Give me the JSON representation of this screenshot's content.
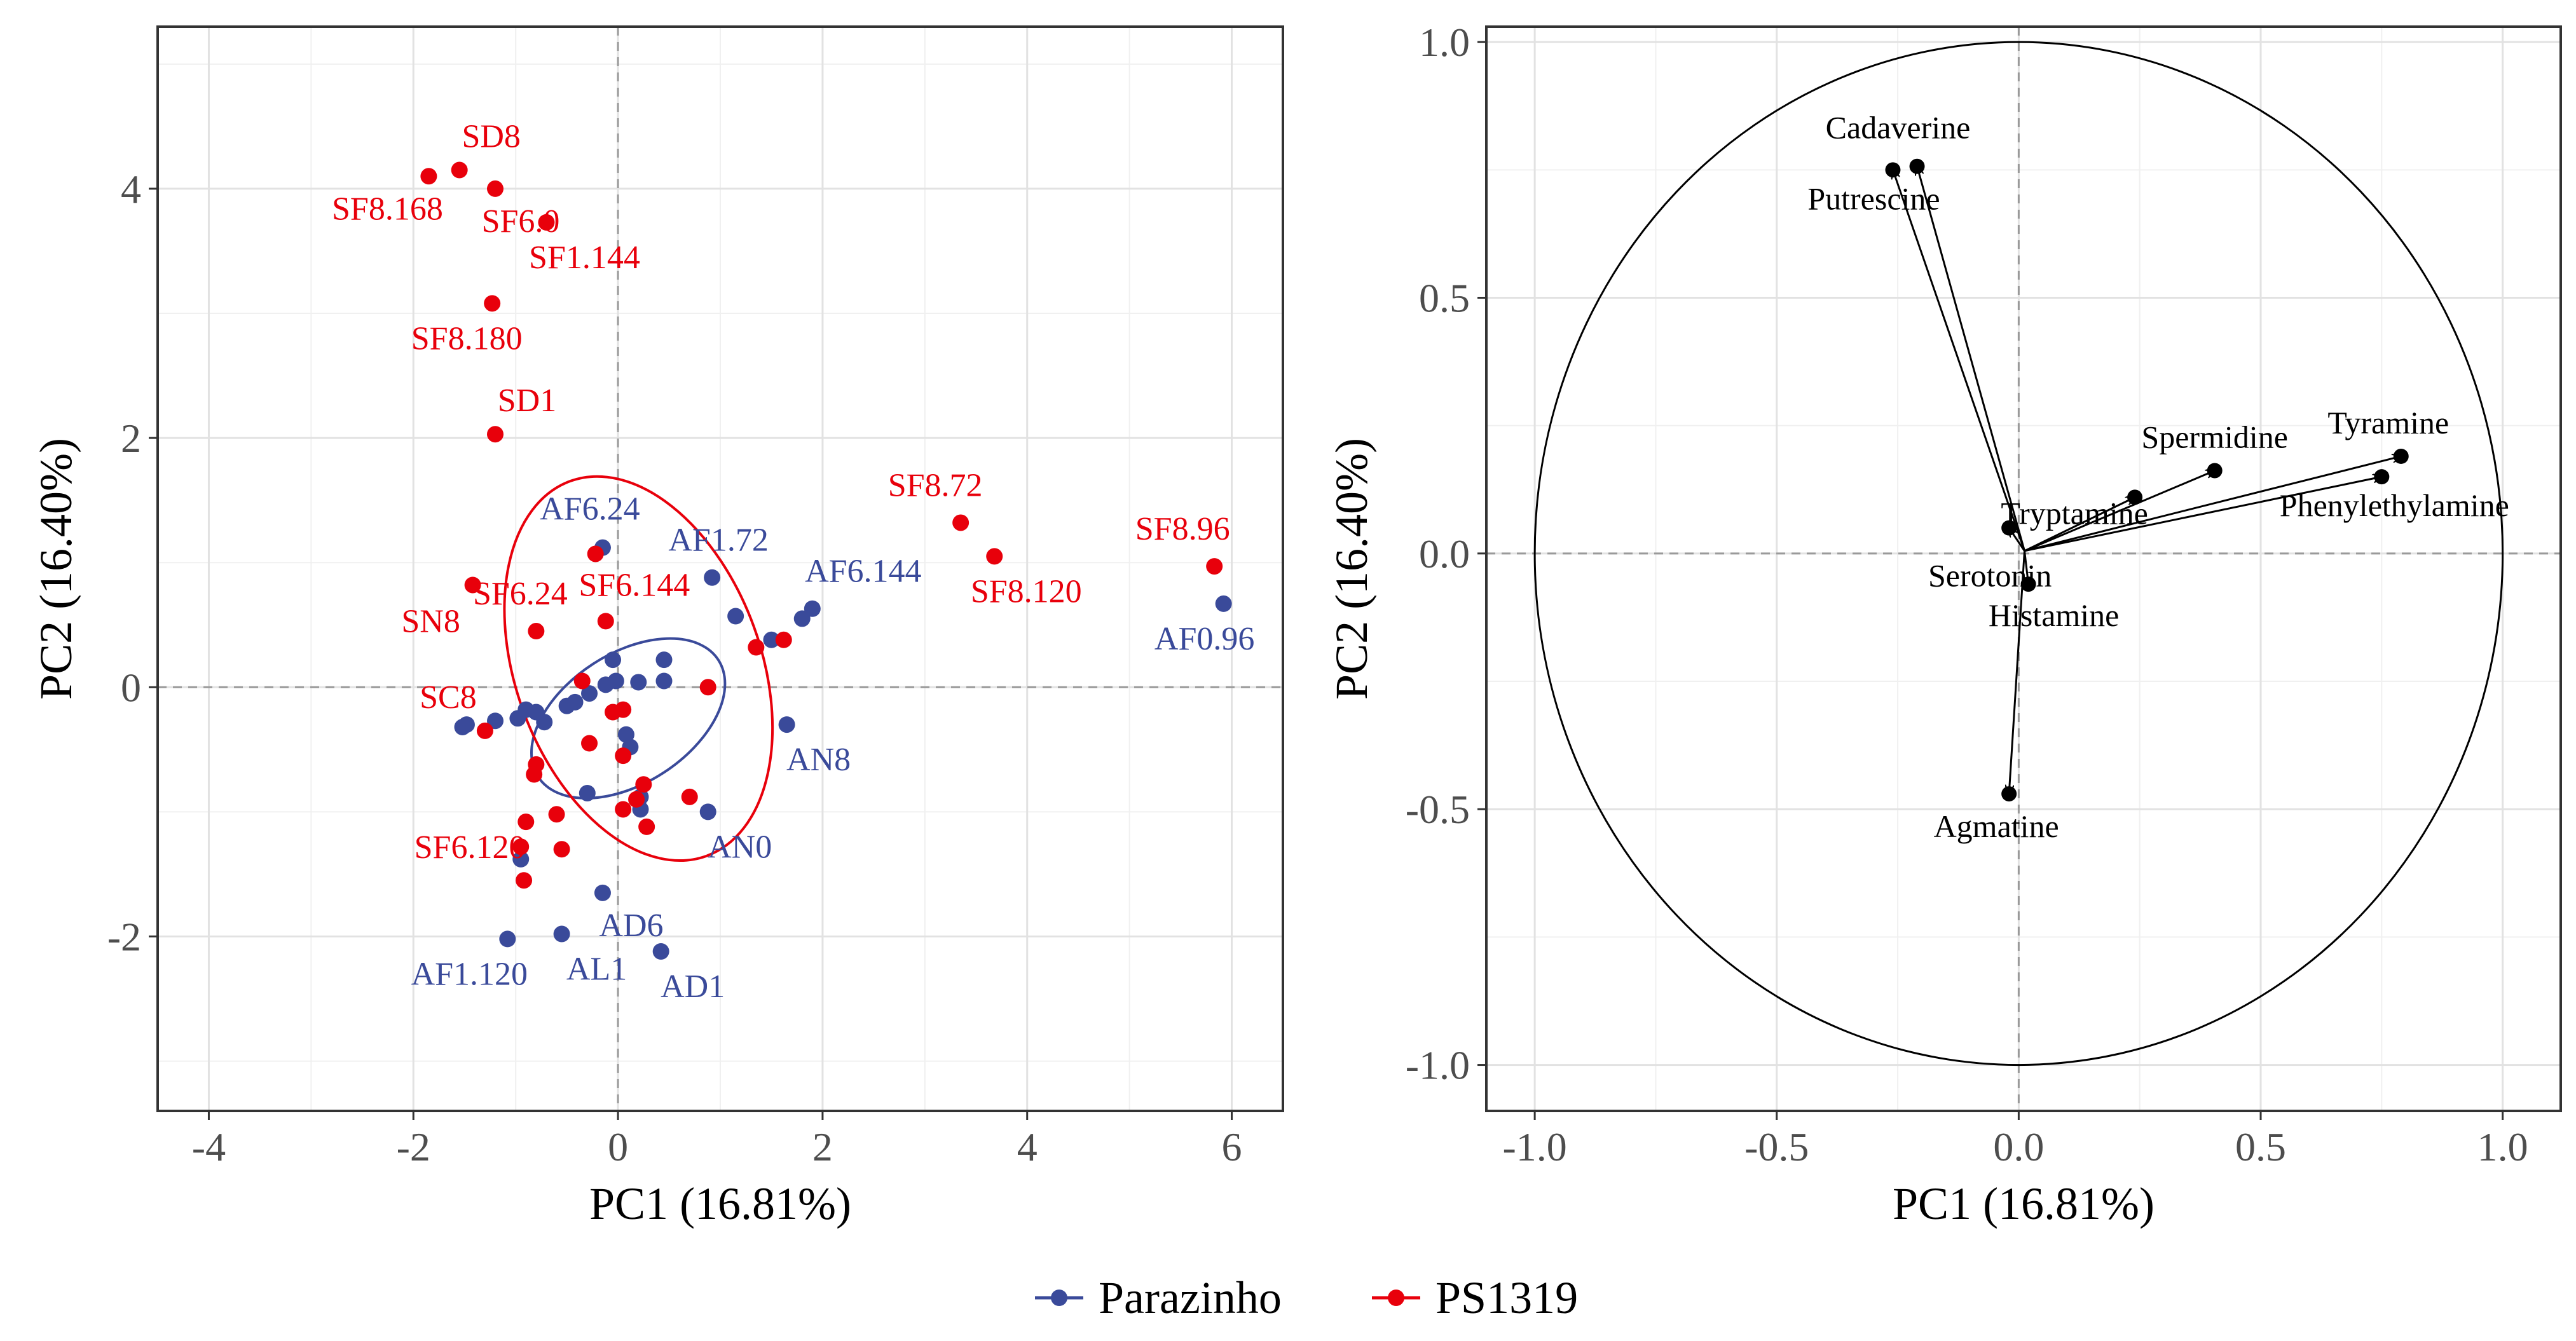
{
  "colors": {
    "parazinho": "#3a4a9a",
    "ps1319": "#e8000b"
  },
  "legend": {
    "items": [
      {
        "label": "Parazinho",
        "color": "#3a4a9a"
      },
      {
        "label": "PS1319",
        "color": "#e8000b"
      }
    ]
  },
  "chart_data": [
    {
      "type": "scatter",
      "title": "",
      "xlabel": "PC1 (16.81%)",
      "ylabel": "PC2 (16.40%)",
      "xlim": [
        -4.5,
        6.5
      ],
      "ylim": [
        -3.4,
        5.3
      ],
      "xticks": [
        -4,
        -2,
        0,
        2,
        4,
        6
      ],
      "yticks": [
        -2,
        0,
        2,
        4
      ],
      "xtick_labels": [
        "-4",
        "-2",
        "0",
        "2",
        "4",
        "6"
      ],
      "ytick_labels": [
        "-2",
        "0",
        "2",
        "4"
      ],
      "grid": true,
      "series": [
        {
          "name": "Parazinho",
          "color": "#3a4a9a",
          "points": [
            {
              "x": -0.15,
              "y": 1.12,
              "label": "AF6.24"
            },
            {
              "x": 0.92,
              "y": 0.88,
              "label": "AF1.72"
            },
            {
              "x": 1.9,
              "y": 0.63,
              "label": "AF6.144"
            },
            {
              "x": 5.92,
              "y": 0.67,
              "label": "AF0.96"
            },
            {
              "x": 1.65,
              "y": -0.3,
              "label": "AN8"
            },
            {
              "x": 0.88,
              "y": -1.0,
              "label": "AN0"
            },
            {
              "x": -0.15,
              "y": -1.65,
              "label": "AD6"
            },
            {
              "x": -1.08,
              "y": -2.02,
              "label": "AF1.120"
            },
            {
              "x": -0.55,
              "y": -1.98,
              "label": "AL1"
            },
            {
              "x": 0.42,
              "y": -2.12,
              "label": "AD1"
            },
            {
              "x": 1.8,
              "y": 0.55,
              "label": ""
            },
            {
              "x": 1.5,
              "y": 0.38,
              "label": ""
            },
            {
              "x": 1.15,
              "y": 0.57,
              "label": ""
            },
            {
              "x": 0.45,
              "y": 0.22,
              "label": ""
            },
            {
              "x": 0.45,
              "y": 0.05,
              "label": ""
            },
            {
              "x": 0.2,
              "y": 0.04,
              "label": ""
            },
            {
              "x": -0.05,
              "y": 0.22,
              "label": ""
            },
            {
              "x": -0.02,
              "y": 0.05,
              "label": ""
            },
            {
              "x": -0.12,
              "y": 0.02,
              "label": ""
            },
            {
              "x": -0.28,
              "y": -0.05,
              "label": ""
            },
            {
              "x": -0.42,
              "y": -0.12,
              "label": ""
            },
            {
              "x": -0.5,
              "y": -0.15,
              "label": ""
            },
            {
              "x": -0.72,
              "y": -0.28,
              "label": ""
            },
            {
              "x": -0.8,
              "y": -0.2,
              "label": ""
            },
            {
              "x": -0.9,
              "y": -0.18,
              "label": ""
            },
            {
              "x": -0.98,
              "y": -0.25,
              "label": ""
            },
            {
              "x": -1.2,
              "y": -0.27,
              "label": ""
            },
            {
              "x": -1.48,
              "y": -0.3,
              "label": ""
            },
            {
              "x": -1.52,
              "y": -0.32,
              "label": ""
            },
            {
              "x": 0.08,
              "y": -0.38,
              "label": ""
            },
            {
              "x": 0.12,
              "y": -0.48,
              "label": ""
            },
            {
              "x": 0.22,
              "y": -0.88,
              "label": ""
            },
            {
              "x": 0.22,
              "y": -0.98,
              "label": ""
            },
            {
              "x": -0.3,
              "y": -0.85,
              "label": ""
            },
            {
              "x": -0.95,
              "y": -1.38,
              "label": ""
            }
          ]
        },
        {
          "name": "PS1319",
          "color": "#e8000b",
          "points": [
            {
              "x": -1.55,
              "y": 4.15,
              "label": "SD8"
            },
            {
              "x": -1.85,
              "y": 4.1,
              "label": "SF8.168"
            },
            {
              "x": -1.2,
              "y": 4.0,
              "label": "SF6.0"
            },
            {
              "x": -0.7,
              "y": 3.73,
              "label": "SF1.144"
            },
            {
              "x": -1.23,
              "y": 3.08,
              "label": "SF8.180"
            },
            {
              "x": -1.2,
              "y": 2.03,
              "label": "SD1"
            },
            {
              "x": 3.35,
              "y": 1.32,
              "label": "SF8.72"
            },
            {
              "x": 3.68,
              "y": 1.05,
              "label": "SF8.120"
            },
            {
              "x": 5.83,
              "y": 0.97,
              "label": "SF8.96"
            },
            {
              "x": -1.42,
              "y": 0.82,
              "label": "SN8"
            },
            {
              "x": -0.8,
              "y": 0.45,
              "label": "SF6.24"
            },
            {
              "x": -0.12,
              "y": 0.53,
              "label": "SF6.144"
            },
            {
              "x": -1.3,
              "y": -0.35,
              "label": "SC8"
            },
            {
              "x": -0.92,
              "y": -1.55,
              "label": "SF6.120"
            },
            {
              "x": -0.22,
              "y": 1.07,
              "label": ""
            },
            {
              "x": 1.35,
              "y": 0.32,
              "label": ""
            },
            {
              "x": 1.62,
              "y": 0.38,
              "label": ""
            },
            {
              "x": 0.88,
              "y": 0.0,
              "label": ""
            },
            {
              "x": -0.35,
              "y": 0.05,
              "label": ""
            },
            {
              "x": -0.05,
              "y": -0.2,
              "label": ""
            },
            {
              "x": 0.05,
              "y": -0.18,
              "label": ""
            },
            {
              "x": 0.05,
              "y": -0.55,
              "label": ""
            },
            {
              "x": -0.28,
              "y": -0.45,
              "label": ""
            },
            {
              "x": -0.8,
              "y": -0.62,
              "label": ""
            },
            {
              "x": -0.82,
              "y": -0.7,
              "label": ""
            },
            {
              "x": 0.25,
              "y": -0.78,
              "label": ""
            },
            {
              "x": 0.18,
              "y": -0.9,
              "label": ""
            },
            {
              "x": 0.7,
              "y": -0.88,
              "label": ""
            },
            {
              "x": 0.05,
              "y": -0.98,
              "label": ""
            },
            {
              "x": 0.28,
              "y": -1.12,
              "label": ""
            },
            {
              "x": -0.6,
              "y": -1.02,
              "label": ""
            },
            {
              "x": -0.9,
              "y": -1.08,
              "label": ""
            },
            {
              "x": -0.95,
              "y": -1.28,
              "label": ""
            },
            {
              "x": -0.55,
              "y": -1.3,
              "label": ""
            }
          ]
        }
      ],
      "ellipses": [
        {
          "group": "Parazinho",
          "cx": 0.1,
          "cy": -0.25,
          "rx": 1.05,
          "ry": 0.52,
          "angle_deg": 33
        },
        {
          "group": "PS1319",
          "cx": 0.2,
          "cy": 0.15,
          "rx": 1.2,
          "ry": 1.6,
          "angle_deg": 20
        }
      ]
    },
    {
      "type": "scatter",
      "subtype": "correlation_circle",
      "title": "",
      "xlabel": "PC1 (16.81%)",
      "ylabel": "PC2 (16.40%)",
      "xlim": [
        -1.1,
        1.12
      ],
      "ylim": [
        -1.09,
        1.03
      ],
      "xticks": [
        -1.0,
        -0.5,
        0.0,
        0.5,
        1.0
      ],
      "yticks": [
        -1.0,
        -0.5,
        0.0,
        0.5,
        1.0
      ],
      "xtick_labels": [
        "-1.0",
        "-0.5",
        "0.0",
        "0.5",
        "1.0"
      ],
      "ytick_labels": [
        "-1.0",
        "-0.5",
        "0.0",
        "0.5",
        "1.0"
      ],
      "grid": true,
      "circle_radius": 1.0,
      "variables": [
        {
          "name": "Cadaverine",
          "x": -0.21,
          "y": 0.757
        },
        {
          "name": "Putrescine",
          "x": -0.26,
          "y": 0.75
        },
        {
          "name": "Spermidine",
          "x": 0.405,
          "y": 0.162
        },
        {
          "name": "Tyramine",
          "x": 0.79,
          "y": 0.19
        },
        {
          "name": "Phenylethylamine",
          "x": 0.75,
          "y": 0.15
        },
        {
          "name": "Tryptamine",
          "x": 0.24,
          "y": 0.11
        },
        {
          "name": "Serotonin",
          "x": -0.02,
          "y": 0.05
        },
        {
          "name": "Histamine",
          "x": 0.02,
          "y": -0.06
        },
        {
          "name": "Agmatine",
          "x": -0.02,
          "y": -0.47
        }
      ]
    }
  ]
}
